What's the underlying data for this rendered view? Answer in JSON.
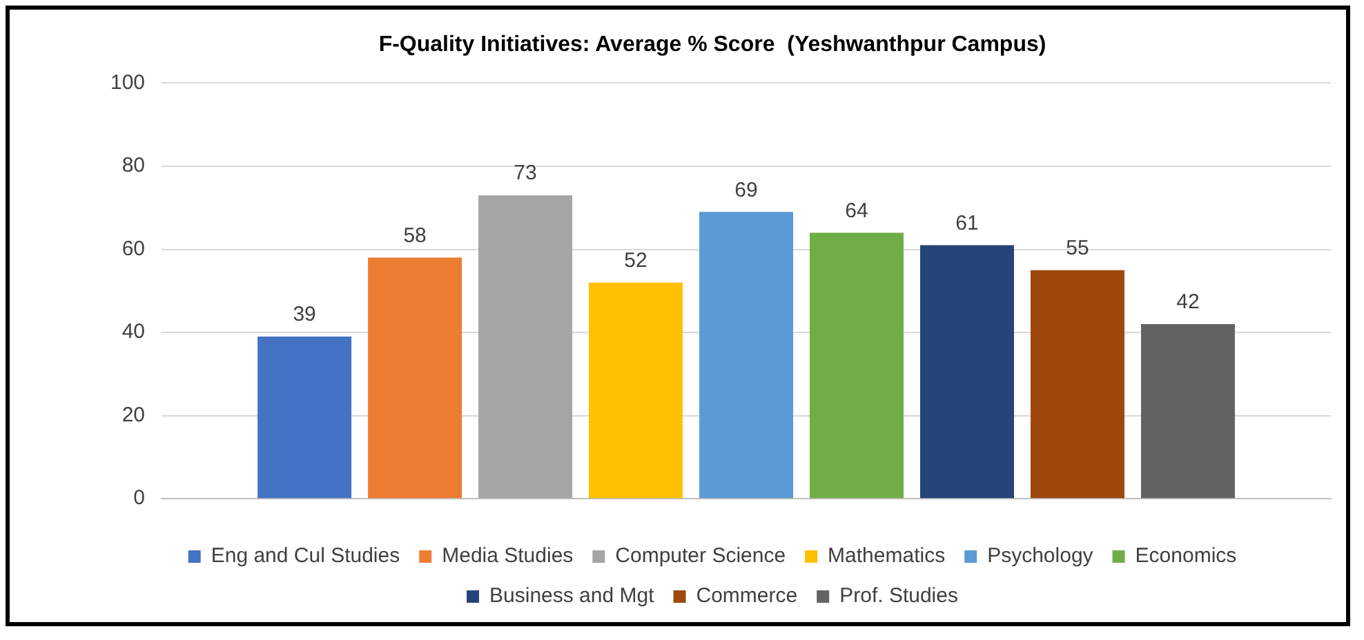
{
  "chart_data": {
    "type": "bar",
    "title": "F-Quality Initiatives: Average % Score  (Yeshwanthpur Campus)",
    "categories": [
      null
    ],
    "series": [
      {
        "name": "Eng and Cul Studies",
        "color": "#4472c4",
        "values": [
          39
        ]
      },
      {
        "name": "Media Studies",
        "color": "#ed7d31",
        "values": [
          58
        ]
      },
      {
        "name": "Computer Science",
        "color": "#a5a5a5",
        "values": [
          73
        ]
      },
      {
        "name": "Mathematics",
        "color": "#ffc000",
        "values": [
          52
        ]
      },
      {
        "name": "Psychology",
        "color": "#5b9bd5",
        "values": [
          69
        ]
      },
      {
        "name": "Economics",
        "color": "#70ad47",
        "values": [
          64
        ]
      },
      {
        "name": "Business and Mgt",
        "color": "#264478",
        "values": [
          61
        ]
      },
      {
        "name": "Commerce",
        "color": "#9e480e",
        "values": [
          55
        ]
      },
      {
        "name": "Prof. Studies",
        "color": "#636363",
        "values": [
          42
        ]
      }
    ],
    "ylim": [
      0,
      100
    ],
    "yticks": [
      0,
      20,
      40,
      60,
      80,
      100
    ],
    "grid": "y",
    "legend": "bottom",
    "data_labels": true
  }
}
